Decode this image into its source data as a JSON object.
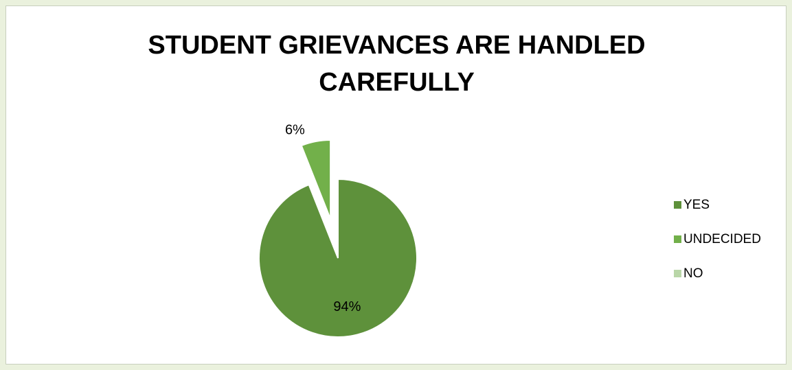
{
  "chart_data": {
    "type": "pie",
    "title_lines": [
      "STUDENT GRIEVANCES ARE HANDLED",
      "CAREFULLY"
    ],
    "categories": [
      "YES",
      "UNDECIDED",
      "NO"
    ],
    "values": [
      94,
      6,
      0
    ],
    "data_labels": [
      "94%",
      "6%",
      ""
    ],
    "colors": [
      "#5e913b",
      "#72b04a",
      "#b9d6a8"
    ],
    "exploded": [
      false,
      true,
      false
    ],
    "legend_position": "right"
  }
}
